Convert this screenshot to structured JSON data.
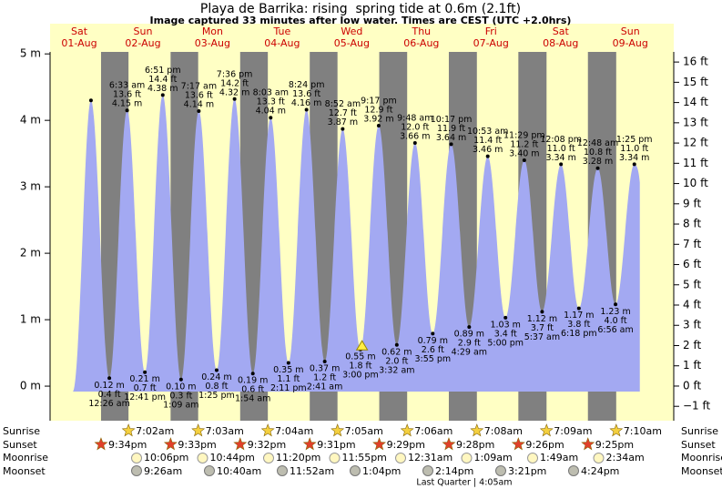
{
  "chart_data": {
    "type": "area",
    "title": "Playa de Barrika: rising  spring tide at 0.6m (2.1ft)",
    "subtitle": "Image captured 33 minutes after low water. Times are CEST (UTC +2.0hrs)",
    "days": [
      "Sat",
      "Sun",
      "Mon",
      "Tue",
      "Wed",
      "Thu",
      "Fri",
      "Sat",
      "Sun"
    ],
    "dates": [
      "01-Aug",
      "02-Aug",
      "03-Aug",
      "04-Aug",
      "05-Aug",
      "06-Aug",
      "07-Aug",
      "08-Aug",
      "09-Aug"
    ],
    "x": [
      18.1,
      24.43,
      30.55,
      36.68,
      42.85,
      49.15,
      55.28,
      61.42,
      67.6,
      73.9,
      80.05,
      86.18,
      92.4,
      98.68,
      104.87,
      111.0,
      117.28,
      123.53,
      129.8,
      135.92,
      142.28,
      148.48,
      154.88,
      161.0,
      167.48,
      173.62,
      180.13,
      186.3,
      192.8,
      198.93,
      205.42
    ],
    "values": [
      4.3,
      0.12,
      4.15,
      0.21,
      4.38,
      0.1,
      4.14,
      0.24,
      4.32,
      0.19,
      4.04,
      0.35,
      4.16,
      0.37,
      3.87,
      0.55,
      3.92,
      0.62,
      3.66,
      0.79,
      3.64,
      0.89,
      3.46,
      1.03,
      3.4,
      1.12,
      3.34,
      1.17,
      3.28,
      1.23,
      3.34
    ],
    "value_labels": [
      null,
      "0.12 m",
      "4.15 m",
      "0.21 m",
      "4.38 m",
      "0.10 m",
      "4.14 m",
      "0.24 m",
      "4.32 m",
      "0.19 m",
      "4.04 m",
      "0.35 m",
      "4.16 m",
      "0.37 m",
      "3.87 m",
      "0.55 m",
      "3.92 m",
      "0.62 m",
      "3.66 m",
      "0.79 m",
      "3.64 m",
      "0.89 m",
      "3.46 m",
      "1.03 m",
      "3.40 m",
      "1.12 m",
      "3.34 m",
      "1.17 m",
      "3.28 m",
      "1.23 m",
      "3.34 m"
    ],
    "ft_labels": [
      null,
      "0.4 ft",
      "13.6 ft",
      "0.7 ft",
      "14.4 ft",
      "0.3 ft",
      "13.6 ft",
      "0.8 ft",
      "14.2 ft",
      "0.6 ft",
      "13.3 ft",
      "1.1 ft",
      "13.6 ft",
      "1.2 ft",
      "12.7 ft",
      "1.8 ft",
      "12.9 ft",
      "2.0 ft",
      "12.0 ft",
      "2.6 ft",
      "11.9 ft",
      "2.9 ft",
      "11.4 ft",
      "3.4 ft",
      "11.2 ft",
      "3.7 ft",
      "11.0 ft",
      "3.8 ft",
      "10.8 ft",
      "4.0 ft",
      "11.0 ft"
    ],
    "times": [
      null,
      "12:26 am",
      "6:33 am",
      "12:41 pm",
      "6:51 pm",
      "1:09 am",
      "7:17 am",
      "1:25 pm",
      "7:36 pm",
      "1:54 am",
      "8:03 am",
      "2:11 pm",
      "8:24 pm",
      "2:41 am",
      "8:52 am",
      "3:00 pm",
      "9:17 pm",
      "3:32 am",
      "9:48 am",
      "3:55 pm",
      "10:17 pm",
      "4:29 am",
      "10:53 am",
      "5:00 pm",
      "11:29 pm",
      "5:37 am",
      "12:08 pm",
      "6:18 pm",
      "12:48 am",
      "6:56 am",
      "1:25 pm"
    ],
    "color": "#a3a9f2",
    "xlim": [
      4,
      219
    ],
    "ylim": [
      -0.52,
      5.03
    ],
    "yticks": [
      {
        "value": 0,
        "label": "0 m"
      },
      {
        "value": 1,
        "label": "1 m"
      },
      {
        "value": 2,
        "label": "2 m"
      },
      {
        "value": 3,
        "label": "3 m"
      },
      {
        "value": 4,
        "label": "4 m"
      },
      {
        "value": 5,
        "label": "5 m"
      }
    ],
    "y2lim": [
      -1.71,
      16.5
    ],
    "y2ticks": [
      {
        "value": -1,
        "label": "−1 ft"
      },
      {
        "value": 0,
        "label": "0 ft"
      },
      {
        "value": 1,
        "label": "1 ft"
      },
      {
        "value": 2,
        "label": "2 ft"
      },
      {
        "value": 3,
        "label": "3 ft"
      },
      {
        "value": 4,
        "label": "4 ft"
      },
      {
        "value": 5,
        "label": "5 ft"
      },
      {
        "value": 6,
        "label": "6 ft"
      },
      {
        "value": 7,
        "label": "7 ft"
      },
      {
        "value": 8,
        "label": "8 ft"
      },
      {
        "value": 9,
        "label": "9 ft"
      },
      {
        "value": 10,
        "label": "10 ft"
      },
      {
        "value": 11,
        "label": "11 ft"
      },
      {
        "value": 12,
        "label": "12 ft"
      },
      {
        "value": 13,
        "label": "13 ft"
      },
      {
        "value": 14,
        "label": "14 ft"
      },
      {
        "value": 15,
        "label": "15 ft"
      },
      {
        "value": 16,
        "label": "16 ft"
      }
    ],
    "current": {
      "x": 111.55,
      "value": 0.6
    },
    "sunrise_label": "Sunrise",
    "sunrise": [
      "7:02am",
      "7:03am",
      "7:04am",
      "7:05am",
      "7:06am",
      "7:08am",
      "7:09am",
      "7:10am"
    ],
    "sunset_label": "Sunset",
    "sunset": [
      "9:34pm",
      "9:33pm",
      "9:32pm",
      "9:31pm",
      "9:29pm",
      "9:28pm",
      "9:26pm",
      "9:25pm"
    ],
    "moonrise_label": "Moonrise",
    "moonrise": [
      "10:06pm",
      "10:44pm",
      "11:20pm",
      "11:55pm",
      "12:31am",
      "1:09am",
      "1:49am",
      "2:34am"
    ],
    "moonset_label": "Moonset",
    "moonset": [
      "9:26am",
      "10:40am",
      "11:52am",
      "1:04pm",
      "2:14pm",
      "3:21pm",
      "4:24pm"
    ],
    "moon_phase": "Last Quarter | 4:05am"
  }
}
